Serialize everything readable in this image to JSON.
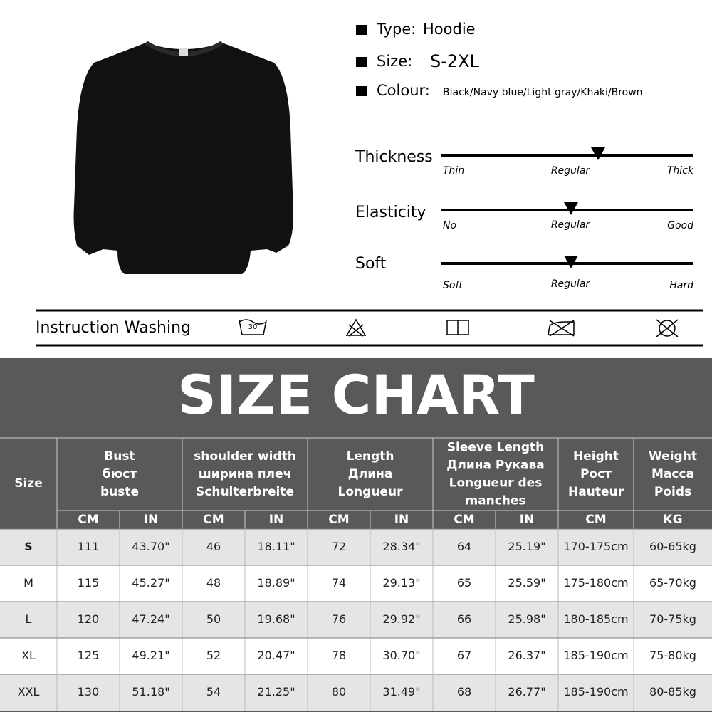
{
  "specs": [
    {
      "label": "Type:",
      "value": "Hoodie"
    },
    {
      "label": "Size:",
      "value": "S-2XL"
    },
    {
      "label": "Colour:",
      "value": "Black/Navy blue/Light gray/Khaki/Brown"
    }
  ],
  "scales": [
    {
      "name": "Thickness",
      "left": "Thin",
      "middle": "Regular",
      "right": "Thick"
    },
    {
      "name": "Elasticity",
      "left": "No",
      "middle": "Regular",
      "right": "Good"
    },
    {
      "name": "Soft",
      "left": "Soft",
      "middle": "Regular",
      "right": "Hard"
    }
  ],
  "washing": {
    "label": "Instruction Washing",
    "temperature": "30"
  },
  "size_chart": {
    "title": "SIZE CHART",
    "size_header": "Size",
    "groups": [
      {
        "lines": [
          "Bust",
          "бюст",
          "buste"
        ],
        "units": [
          "CM",
          "IN"
        ]
      },
      {
        "lines": [
          "shoulder width",
          "ширина плеч",
          "Schulterbreite"
        ],
        "units": [
          "CM",
          "IN"
        ]
      },
      {
        "lines": [
          "Length",
          "Длина",
          "Longueur"
        ],
        "units": [
          "CM",
          "IN"
        ]
      },
      {
        "lines": [
          "Sleeve Length",
          "Длина Рукава",
          "Longueur des",
          "manches"
        ],
        "units": [
          "CM",
          "IN"
        ]
      },
      {
        "lines": [
          "Height",
          "Рост",
          "Hauteur"
        ],
        "units": [
          "CM"
        ]
      },
      {
        "lines": [
          "Weight",
          "Macca",
          "Poids"
        ],
        "units": [
          "KG"
        ]
      }
    ],
    "rows": [
      [
        "S",
        "111",
        "43.70\"",
        "46",
        "18.11\"",
        "72",
        "28.34\"",
        "64",
        "25.19\"",
        "170-175cm",
        "60-65kg"
      ],
      [
        "M",
        "115",
        "45.27\"",
        "48",
        "18.89\"",
        "74",
        "29.13\"",
        "65",
        "25.59\"",
        "175-180cm",
        "65-70kg"
      ],
      [
        "L",
        "120",
        "47.24\"",
        "50",
        "19.68\"",
        "76",
        "29.92\"",
        "66",
        "25.98\"",
        "180-185cm",
        "70-75kg"
      ],
      [
        "XL",
        "125",
        "49.21\"",
        "52",
        "20.47\"",
        "78",
        "30.70\"",
        "67",
        "26.37\"",
        "185-190cm",
        "75-80kg"
      ],
      [
        "XXL",
        "130",
        "51.18\"",
        "54",
        "21.25\"",
        "80",
        "31.49\"",
        "68",
        "26.77\"",
        "185-190cm",
        "80-85kg"
      ]
    ]
  }
}
